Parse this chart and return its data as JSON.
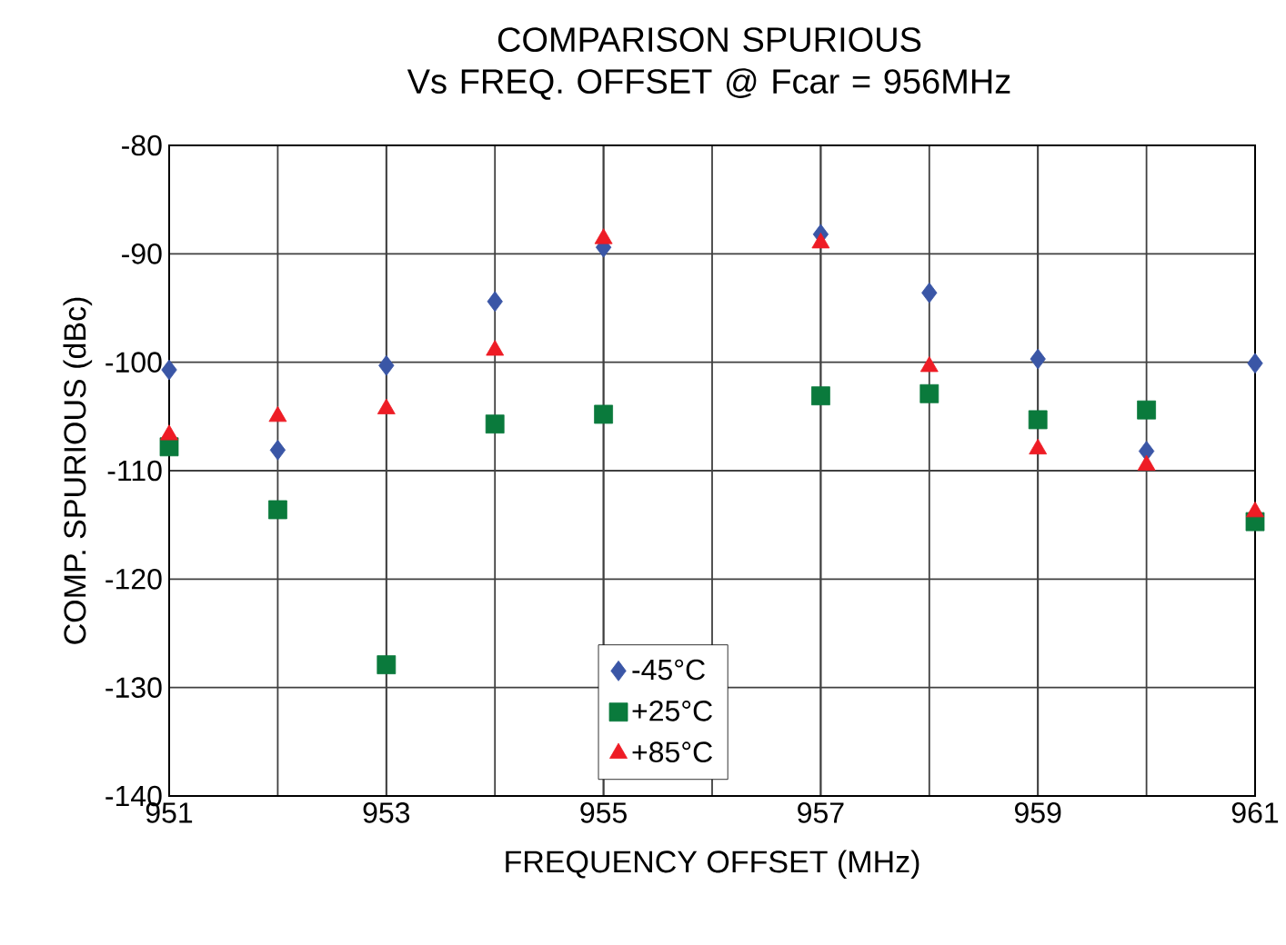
{
  "chart_data": {
    "type": "scatter",
    "title": "COMPARISON SPURIOUS\nVs FREQ. OFFSET @ Fcar = 956MHz",
    "xlabel": "FREQUENCY OFFSET (MHz)",
    "ylabel": "COMP. SPURIOUS (dBc)",
    "x": [
      951,
      952,
      953,
      954,
      955,
      957,
      958,
      959,
      960,
      961
    ],
    "series": [
      {
        "name": "-45°C",
        "color": "#3a56a6",
        "marker": "diamond",
        "values": [
          -100.7,
          -108.1,
          -100.3,
          -94.4,
          -89.4,
          -88.2,
          -93.6,
          -99.7,
          -108.2,
          -100.1
        ]
      },
      {
        "name": "+25°C",
        "color": "#0a7a3c",
        "marker": "square",
        "values": [
          -107.8,
          -113.6,
          -127.9,
          -105.7,
          -104.8,
          -103.1,
          -102.9,
          -105.3,
          -104.4,
          -114.7
        ]
      },
      {
        "name": "+85°C",
        "color": "#ee1c25",
        "marker": "triangle",
        "values": [
          -106.7,
          -105.0,
          -104.3,
          -98.9,
          -88.6,
          -89.0,
          -100.4,
          -108.0,
          -109.5,
          -113.8
        ]
      }
    ],
    "xlim": [
      951,
      961
    ],
    "xticks": [
      951,
      953,
      955,
      957,
      959,
      961
    ],
    "ylim": [
      -140,
      -80
    ],
    "yticks": [
      -140,
      -130,
      -120,
      -110,
      -100,
      -90,
      -80
    ],
    "grid": true,
    "legend": "bottom"
  }
}
